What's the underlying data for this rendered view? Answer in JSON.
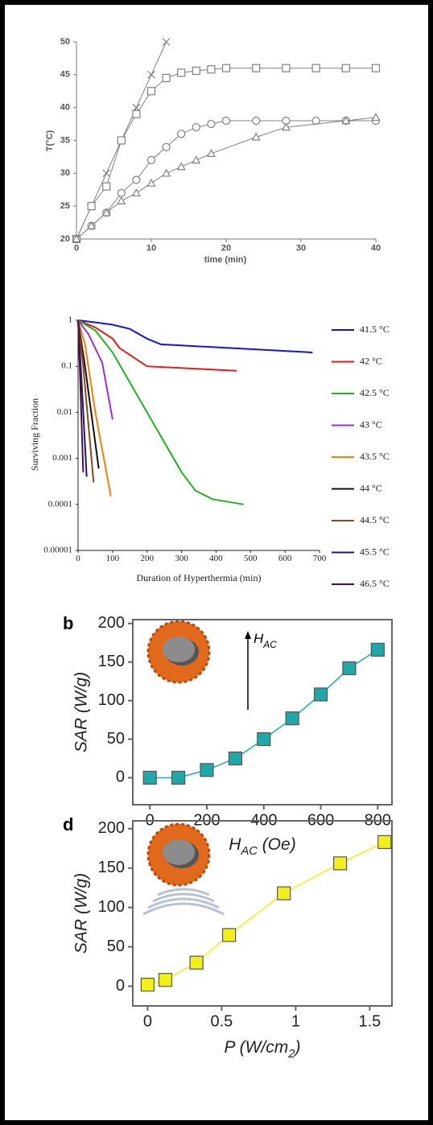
{
  "chart_data": [
    {
      "type": "line",
      "xlabel": "time (min)",
      "ylabel": "T(°C)",
      "xlim": [
        0,
        40
      ],
      "ylim": [
        20,
        50
      ],
      "xticks": [
        0,
        10,
        20,
        30,
        40
      ],
      "yticks": [
        20,
        25,
        30,
        35,
        40,
        45,
        50
      ],
      "series": [
        {
          "color": "#808080",
          "marker": "x",
          "x": [
            0,
            2,
            4,
            6,
            8,
            10,
            12
          ],
          "values": [
            20,
            25,
            30,
            35,
            40,
            45,
            50
          ]
        },
        {
          "color": "#808080",
          "marker": "square",
          "x": [
            0,
            2,
            4,
            6,
            8,
            10,
            12,
            14,
            16,
            18,
            20,
            24,
            28,
            32,
            36,
            40
          ],
          "values": [
            20,
            25,
            28,
            35,
            39,
            42.5,
            44.5,
            45.3,
            45.6,
            45.8,
            46,
            46,
            46,
            46,
            46,
            46
          ]
        },
        {
          "color": "#808080",
          "marker": "circle",
          "x": [
            0,
            2,
            4,
            6,
            8,
            10,
            12,
            14,
            16,
            18,
            20,
            24,
            28,
            32,
            36,
            40
          ],
          "values": [
            20,
            22,
            24,
            27,
            29,
            32,
            34,
            36,
            37,
            37.5,
            38,
            38,
            38,
            38,
            38,
            38
          ]
        },
        {
          "color": "#808080",
          "marker": "triangle",
          "x": [
            0,
            2,
            4,
            6,
            8,
            10,
            12,
            14,
            16,
            18,
            24,
            28,
            36,
            40
          ],
          "values": [
            20,
            22,
            24,
            25.8,
            27,
            28.5,
            30,
            31,
            32,
            33,
            35.5,
            37,
            38,
            38.5
          ]
        }
      ]
    },
    {
      "type": "line",
      "xlabel": "Duration of Hyperthermia (min)",
      "ylabel": "Surviving Fraction",
      "log_y": true,
      "legend": "right",
      "xlim": [
        0,
        700
      ],
      "ylim": [
        1e-05,
        1
      ],
      "xticks": [
        0,
        100,
        200,
        300,
        400,
        500,
        600,
        700
      ],
      "yticks": [
        1,
        0.1,
        0.01,
        0.001,
        0.0001,
        1e-05
      ],
      "series": [
        {
          "name": "41.5 °C",
          "color": "#1515d6",
          "x": [
            0,
            50,
            100,
            150,
            200,
            240,
            680
          ],
          "values": [
            1,
            0.9,
            0.8,
            0.65,
            0.4,
            0.3,
            0.2
          ]
        },
        {
          "name": "42 °C",
          "color": "#e01b1b",
          "x": [
            0,
            50,
            100,
            120,
            200,
            460
          ],
          "values": [
            1,
            0.7,
            0.4,
            0.25,
            0.1,
            0.08
          ]
        },
        {
          "name": "42.5 °C",
          "color": "#22b022",
          "x": [
            0,
            50,
            100,
            200,
            300,
            340,
            390,
            480
          ],
          "values": [
            1,
            0.6,
            0.2,
            0.01,
            0.0005,
            0.0002,
            0.00013,
            0.0001
          ]
        },
        {
          "name": "43 °C",
          "color": "#9b30d0",
          "x": [
            0,
            30,
            70,
            100
          ],
          "values": [
            1,
            0.5,
            0.12,
            0.007
          ]
        },
        {
          "name": "43.5 °C",
          "color": "#f07f10",
          "x": [
            0,
            20,
            50,
            95
          ],
          "values": [
            1,
            0.3,
            0.01,
            0.00015
          ]
        },
        {
          "name": "44 °C",
          "color": "#111111",
          "x": [
            0,
            20,
            60
          ],
          "values": [
            1,
            0.1,
            0.0006
          ]
        },
        {
          "name": "44.5 °C",
          "color": "#8a4a1a",
          "x": [
            0,
            15,
            45
          ],
          "values": [
            1,
            0.1,
            0.0003
          ]
        },
        {
          "name": "45.5 °C",
          "color": "#1a1a70",
          "x": [
            0,
            10,
            25
          ],
          "values": [
            1,
            0.05,
            0.0004
          ]
        },
        {
          "name": "46.5 °C",
          "color": "#4a1040",
          "x": [
            0,
            5,
            15
          ],
          "values": [
            1,
            0.1,
            0.0005
          ]
        }
      ]
    },
    {
      "type": "line",
      "panel_label": "b",
      "xlabel": [
        "H",
        "AC",
        " (Oe)"
      ],
      "ylabel": "SAR (W/g)",
      "annotation": [
        "H",
        "AC"
      ],
      "xlim": [
        -60,
        850
      ],
      "ylim": [
        -35,
        205
      ],
      "xticks": [
        0,
        200,
        400,
        600,
        800
      ],
      "yticks": [
        0,
        50,
        100,
        150,
        200
      ],
      "series": [
        {
          "color": "#20a8a8",
          "marker": "square",
          "x": [
            0,
            100,
            200,
            300,
            400,
            500,
            600,
            700,
            800
          ],
          "values": [
            0,
            0,
            10,
            25,
            50,
            77,
            108,
            142,
            166
          ]
        }
      ]
    },
    {
      "type": "line",
      "panel_label": "d",
      "xlabel": [
        "P (W/cm",
        "2",
        ")"
      ],
      "ylabel": "SAR (W/g)",
      "xlim": [
        -0.1,
        1.65
      ],
      "ylim": [
        -25,
        210
      ],
      "xticks": [
        0,
        0.5,
        1,
        1.5
      ],
      "yticks": [
        0,
        50,
        100,
        150,
        200
      ],
      "series": [
        {
          "color": "#f2ef1a",
          "marker": "square",
          "x": [
            0,
            0.12,
            0.33,
            0.55,
            0.92,
            1.3,
            1.6
          ],
          "values": [
            2,
            8,
            30,
            65,
            118,
            156,
            183
          ]
        }
      ]
    }
  ]
}
